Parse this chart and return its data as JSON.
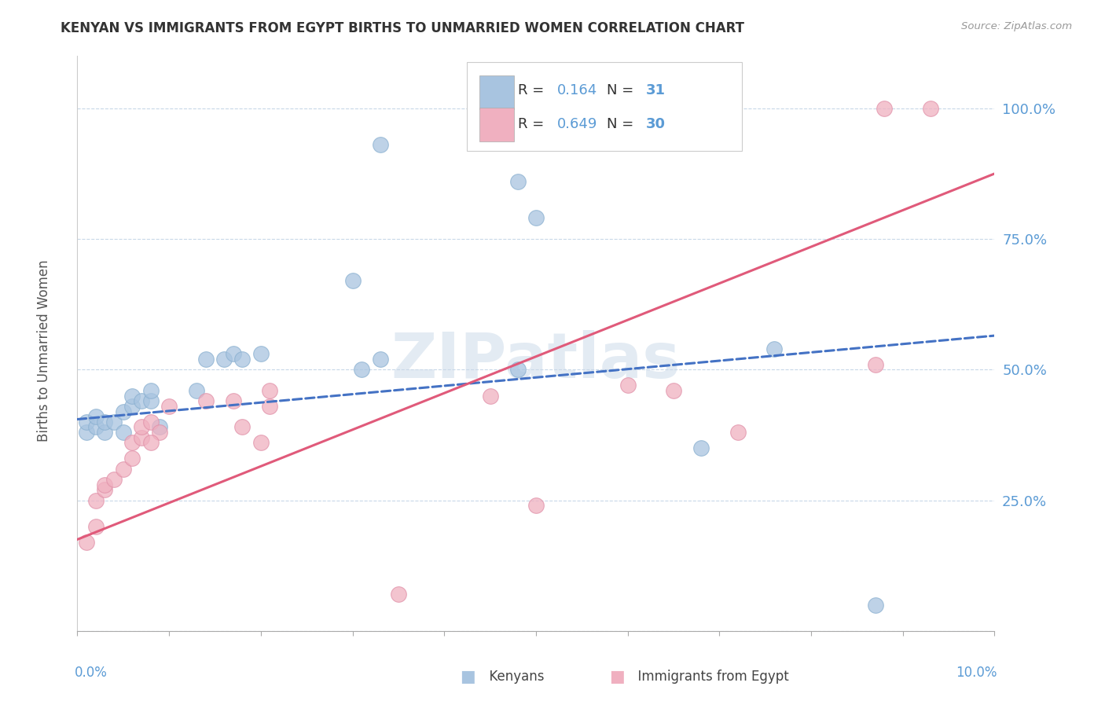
{
  "title": "KENYAN VS IMMIGRANTS FROM EGYPT BIRTHS TO UNMARRIED WOMEN CORRELATION CHART",
  "source": "Source: ZipAtlas.com",
  "ylabel": "Births to Unmarried Women",
  "blue_color": "#a8c4e0",
  "pink_color": "#f0b0c0",
  "blue_line_color": "#4472c4",
  "pink_line_color": "#e05a7a",
  "blue_label": "Kenyans",
  "pink_label": "Immigrants from Egypt",
  "watermark": "ZIPatlas",
  "xlim": [
    0.0,
    0.1
  ],
  "ylim": [
    0.0,
    1.1
  ],
  "yticks": [
    0.0,
    0.25,
    0.5,
    0.75,
    1.0
  ],
  "ytick_labels": [
    "",
    "25.0%",
    "50.0%",
    "75.0%",
    "100.0%"
  ],
  "blue_x": [
    0.001,
    0.001,
    0.002,
    0.002,
    0.003,
    0.003,
    0.004,
    0.005,
    0.005,
    0.006,
    0.006,
    0.007,
    0.008,
    0.008,
    0.009,
    0.013,
    0.014,
    0.016,
    0.017,
    0.018,
    0.02,
    0.033,
    0.033,
    0.048,
    0.048,
    0.05,
    0.068,
    0.076,
    0.087,
    0.03,
    0.031
  ],
  "blue_y": [
    0.38,
    0.4,
    0.39,
    0.41,
    0.38,
    0.4,
    0.4,
    0.38,
    0.42,
    0.43,
    0.45,
    0.44,
    0.44,
    0.46,
    0.39,
    0.46,
    0.52,
    0.52,
    0.53,
    0.52,
    0.53,
    0.93,
    0.52,
    0.86,
    0.5,
    0.79,
    0.35,
    0.54,
    0.05,
    0.67,
    0.5
  ],
  "pink_x": [
    0.001,
    0.002,
    0.002,
    0.003,
    0.003,
    0.004,
    0.005,
    0.006,
    0.006,
    0.007,
    0.007,
    0.008,
    0.009,
    0.01,
    0.014,
    0.017,
    0.018,
    0.02,
    0.021,
    0.021,
    0.035,
    0.045,
    0.05,
    0.06,
    0.065,
    0.072,
    0.087,
    0.088,
    0.093,
    0.008
  ],
  "pink_y": [
    0.17,
    0.2,
    0.25,
    0.27,
    0.28,
    0.29,
    0.31,
    0.33,
    0.36,
    0.37,
    0.39,
    0.4,
    0.38,
    0.43,
    0.44,
    0.44,
    0.39,
    0.36,
    0.43,
    0.46,
    0.07,
    0.45,
    0.24,
    0.47,
    0.46,
    0.38,
    0.51,
    1.0,
    1.0,
    0.36
  ],
  "blue_line_y0": 0.405,
  "blue_line_y1": 0.565,
  "pink_line_y0": 0.175,
  "pink_line_y1": 0.875
}
